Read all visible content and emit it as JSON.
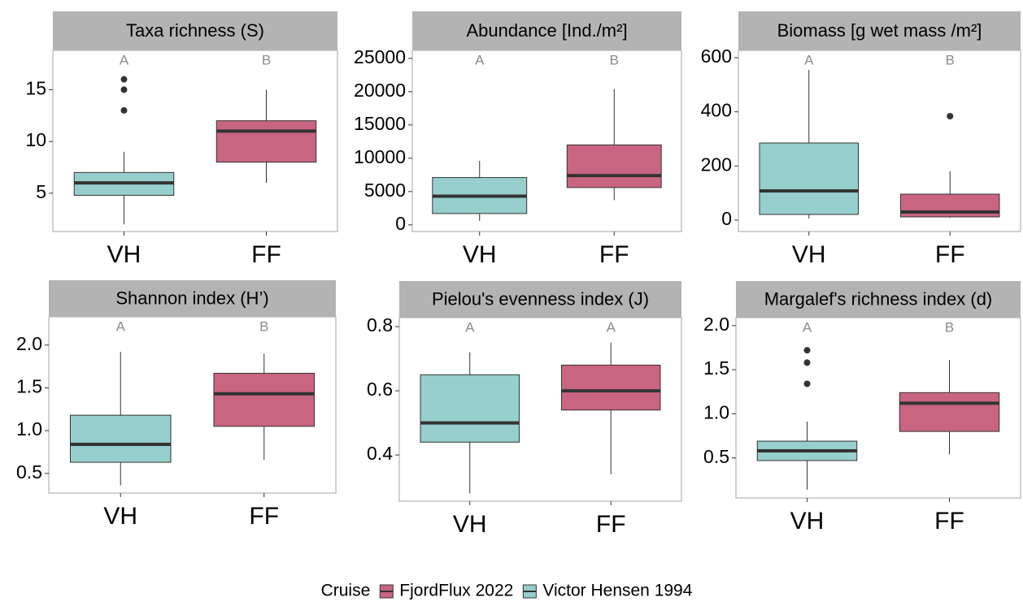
{
  "chart_data": [
    {
      "type": "box",
      "title": "Taxa richness (S)",
      "categories": [
        "VH",
        "FF"
      ],
      "letters": [
        "A",
        "B"
      ],
      "boxes": [
        {
          "min": 2,
          "q1": 4.8,
          "median": 6,
          "q3": 7,
          "max": 9,
          "outliers": [
            16,
            15,
            13
          ],
          "color": "#96cfcd"
        },
        {
          "min": 6,
          "q1": 8,
          "median": 11,
          "q3": 12,
          "max": 15,
          "outliers": [],
          "color": "#c96580"
        }
      ],
      "ylim": [
        1.3,
        18.8
      ],
      "yticks": [
        5,
        10,
        15
      ]
    },
    {
      "type": "box",
      "title": "Abundance [Ind./m²]",
      "categories": [
        "VH",
        "FF"
      ],
      "letters": [
        "A",
        "B"
      ],
      "boxes": [
        {
          "min": 600,
          "q1": 1700,
          "median": 4300,
          "q3": 7100,
          "max": 9600,
          "outliers": [],
          "color": "#96cfcd"
        },
        {
          "min": 3700,
          "q1": 5600,
          "median": 7400,
          "q3": 12000,
          "max": 20400,
          "outliers": [],
          "color": "#c96580"
        }
      ],
      "ylim": [
        -1000,
        26200
      ],
      "yticks": [
        0,
        5000,
        10000,
        15000,
        20000,
        25000
      ]
    },
    {
      "type": "box",
      "title": "Biomass [g wet mass /m²]",
      "categories": [
        "VH",
        "FF"
      ],
      "letters": [
        "A",
        "B"
      ],
      "boxes": [
        {
          "min": 6,
          "q1": 21,
          "median": 108,
          "q3": 285,
          "max": 555,
          "outliers": [],
          "color": "#96cfcd"
        },
        {
          "min": 9,
          "q1": 12,
          "median": 30,
          "q3": 96,
          "max": 180,
          "outliers": [
            384
          ],
          "color": "#c96580"
        }
      ],
      "ylim": [
        -42,
        627
      ],
      "yticks": [
        0,
        200,
        400,
        600
      ]
    },
    {
      "type": "box",
      "title": "Shannon index (H’)",
      "categories": [
        "VH",
        "FF"
      ],
      "letters": [
        "A",
        "B"
      ],
      "boxes": [
        {
          "min": 0.36,
          "q1": 0.63,
          "median": 0.84,
          "q3": 1.18,
          "max": 1.92,
          "outliers": [],
          "color": "#96cfcd"
        },
        {
          "min": 0.66,
          "q1": 1.05,
          "median": 1.43,
          "q3": 1.67,
          "max": 1.9,
          "outliers": [],
          "color": "#c96580"
        }
      ],
      "ylim": [
        0.27,
        2.33
      ],
      "yticks": [
        {
          "value": 0.5,
          "label": "0.5"
        },
        {
          "value": 1,
          "label": "1.0"
        },
        {
          "value": 1.5,
          "label": "1.5"
        },
        {
          "value": 2,
          "label": "2.0"
        }
      ]
    },
    {
      "type": "box",
      "title": "Pielou's evenness index (J)",
      "categories": [
        "VH",
        "FF"
      ],
      "letters": [
        "A",
        "A"
      ],
      "boxes": [
        {
          "min": 0.28,
          "q1": 0.44,
          "median": 0.5,
          "q3": 0.65,
          "max": 0.72,
          "outliers": [],
          "color": "#96cfcd"
        },
        {
          "min": 0.34,
          "q1": 0.54,
          "median": 0.6,
          "q3": 0.68,
          "max": 0.75,
          "outliers": [],
          "color": "#c96580"
        }
      ],
      "ylim": [
        0.256,
        0.828
      ],
      "yticks": [
        0.4,
        0.6,
        0.8
      ]
    },
    {
      "type": "box",
      "title": "Margalef's richness index (d)",
      "categories": [
        "VH",
        "FF"
      ],
      "letters": [
        "A",
        "B"
      ],
      "boxes": [
        {
          "min": 0.14,
          "q1": 0.47,
          "median": 0.58,
          "q3": 0.69,
          "max": 0.91,
          "outliers": [
            1.72,
            1.58,
            1.34
          ],
          "color": "#96cfcd"
        },
        {
          "min": 0.54,
          "q1": 0.8,
          "median": 1.12,
          "q3": 1.24,
          "max": 1.61,
          "outliers": [],
          "color": "#c96580"
        }
      ],
      "ylim": [
        0.046,
        2.09
      ],
      "yticks": [
        {
          "value": 0.5,
          "label": "0.5"
        },
        {
          "value": 1,
          "label": "1.0"
        },
        {
          "value": 1.5,
          "label": "1.5"
        },
        {
          "value": 2,
          "label": "2.0"
        }
      ]
    }
  ],
  "legend": {
    "title": "Cruise",
    "entries": [
      {
        "name": "FjordFlux 2022",
        "color": "#c96580"
      },
      {
        "name": "Victor Hensen 1994",
        "color": "#96cfcd"
      }
    ]
  }
}
